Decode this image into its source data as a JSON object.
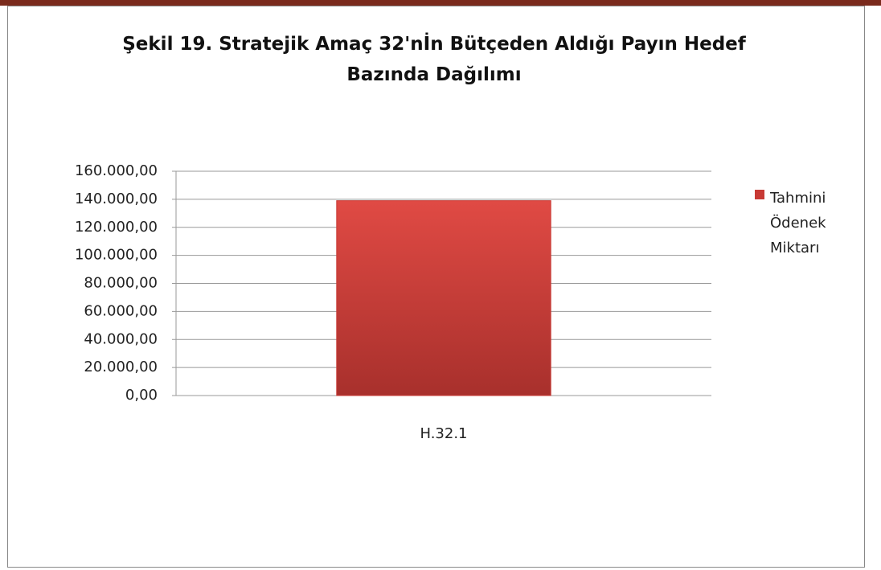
{
  "chart_data": {
    "type": "bar",
    "title": "Şekil 19. Stratejik Amaç 32'nİn Bütçeden Aldığı Payın Hedef Bazında Dağılımı",
    "categories": [
      "H.32.1"
    ],
    "series": [
      {
        "name": "Tahmini Ödenek Miktarı",
        "color": "#c83a35",
        "values": [
          139000
        ]
      }
    ],
    "ylim": [
      0,
      160000
    ],
    "yticks": [
      {
        "value": 0,
        "label": "0,00"
      },
      {
        "value": 20000,
        "label": "20.000,00"
      },
      {
        "value": 40000,
        "label": "40.000,00"
      },
      {
        "value": 60000,
        "label": "60.000,00"
      },
      {
        "value": 80000,
        "label": "80.000,00"
      },
      {
        "value": 100000,
        "label": "100.000,00"
      },
      {
        "value": 120000,
        "label": "120.000,00"
      },
      {
        "value": 140000,
        "label": "140.000,00"
      },
      {
        "value": 160000,
        "label": "160.000,00"
      }
    ],
    "grid": true,
    "legend": "right"
  }
}
